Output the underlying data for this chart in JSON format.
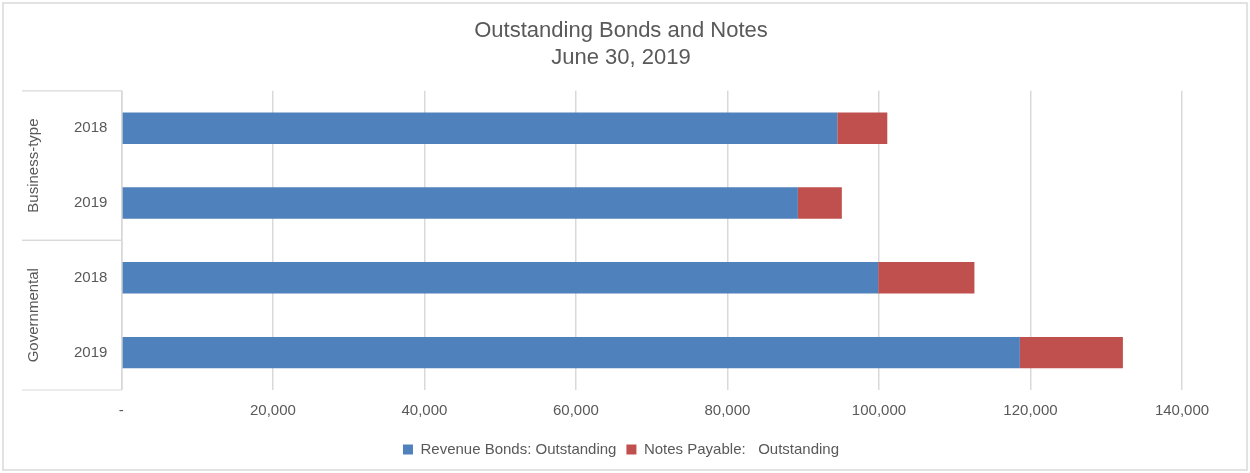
{
  "chart_data": {
    "type": "bar",
    "orientation": "horizontal",
    "stacked": true,
    "title": "Outstanding Bonds and Notes",
    "subtitle": "June 30, 2019",
    "categories": [
      "2018",
      "2019",
      "2018",
      "2019"
    ],
    "annotations": [
      "Business-type",
      "Governmental"
    ],
    "series": [
      {
        "name": "Revenue Bonds: Outstanding",
        "color": "#4f81bd",
        "values": [
          94500,
          89300,
          99900,
          118600
        ]
      },
      {
        "name": "Notes Payable:   Outstanding",
        "color": "#c0504d",
        "values": [
          6600,
          5800,
          12700,
          13600
        ]
      }
    ],
    "xlim": [
      0,
      140000
    ],
    "xticks": [
      {
        "value": 0,
        "label": "-"
      },
      {
        "value": 20000,
        "label": "20,000"
      },
      {
        "value": 40000,
        "label": "40,000"
      },
      {
        "value": 60000,
        "label": "60,000"
      },
      {
        "value": 80000,
        "label": "80,000"
      },
      {
        "value": 100000,
        "label": "100,000"
      },
      {
        "value": 120000,
        "label": "120,000"
      },
      {
        "value": 140000,
        "label": "140,000"
      }
    ],
    "grid": "x",
    "legend": "bottom"
  }
}
